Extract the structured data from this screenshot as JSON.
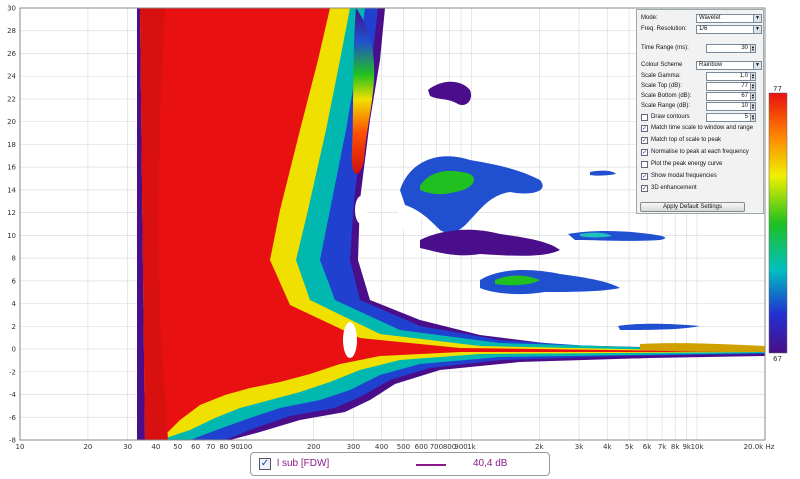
{
  "chart_data": {
    "type": "heatmap",
    "title": "",
    "xlabel": "",
    "ylabel": "",
    "x_scale": "log",
    "xlim": [
      10,
      20000
    ],
    "ylim": [
      -8,
      30
    ],
    "x_ticks": [
      "10",
      "20",
      "30",
      "40",
      "50",
      "60",
      "70",
      "80",
      "90",
      "100",
      "200",
      "300",
      "400",
      "500",
      "600",
      "700",
      "800",
      "900",
      "1k",
      "2k",
      "3k",
      "4k",
      "5k",
      "6k",
      "7k",
      "8k",
      "9k",
      "10k",
      "20.0k Hz"
    ],
    "y_ticks": [
      "30",
      "28",
      "26",
      "24",
      "22",
      "20",
      "18",
      "16",
      "14",
      "12",
      "10",
      "8",
      "6",
      "4",
      "2",
      "0",
      "-2",
      "-4",
      "-6",
      "-8"
    ],
    "colorbar": {
      "max_label": "77",
      "min_label": "67"
    },
    "grid": true
  },
  "controls": {
    "mode": {
      "label": "Mode:",
      "value": "Wavelet"
    },
    "freq_resolution": {
      "label": "Freq. Resolution:",
      "value": "1/6"
    },
    "time_range": {
      "label": "Time Range (ms):",
      "value": "30"
    },
    "colour_scheme": {
      "label": "Colour Scheme",
      "value": "Rainbow"
    },
    "scale_gamma": {
      "label": "Scale Gamma:",
      "value": "1,0"
    },
    "scale_top": {
      "label": "Scale Top (dB):",
      "value": "77"
    },
    "scale_bottom": {
      "label": "Scale Bottom (dB):",
      "value": "67"
    },
    "scale_range": {
      "label": "Scale Range (dB):",
      "value": "10"
    },
    "draw_contours": {
      "label": "Draw contours",
      "checked": false,
      "value": "5"
    },
    "checkboxes": [
      {
        "label": "Match time scale to window and range",
        "checked": true
      },
      {
        "label": "Match top of scale to peak",
        "checked": true
      },
      {
        "label": "Normalise to peak at each frequency",
        "checked": true
      },
      {
        "label": "Plot the peak energy curve",
        "checked": false
      },
      {
        "label": "Show modal frequencies",
        "checked": true
      },
      {
        "label": "3D enhancement",
        "checked": true
      }
    ],
    "apply_button": "Apply Default Settings"
  },
  "legend": {
    "check": "✓",
    "name": "l sub [FDW]",
    "value": "40,4 dB",
    "color": "#8a1a8a"
  }
}
